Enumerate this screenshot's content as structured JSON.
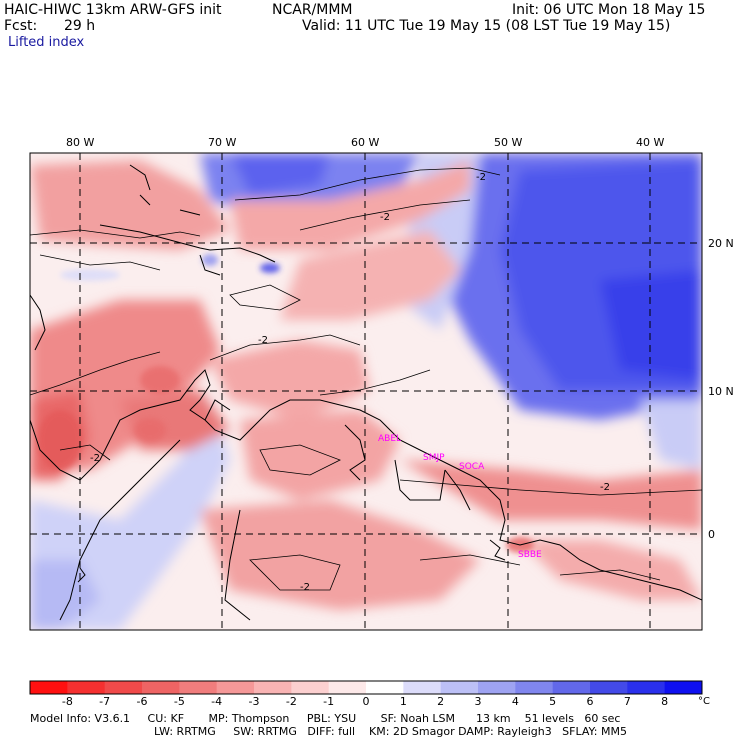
{
  "header": {
    "model": "HAIC-HIWC 13km ARW-GFS init",
    "org": "NCAR/MMM",
    "init": "Init: 06 UTC Mon 18 May 15",
    "fcst_label": "Fcst:",
    "fcst_hours": "29 h",
    "valid": "Valid: 11 UTC Tue 19 May 15 (08 LST Tue 19 May 15)",
    "field": "Lifted index"
  },
  "map": {
    "lon_labels": [
      "80 W",
      "70 W",
      "60 W",
      "50 W",
      "40 W"
    ],
    "lat_labels": [
      "20 N",
      "10 N",
      "0"
    ],
    "contour_labels": [
      "-2",
      "-2",
      "-2",
      "-2",
      "-2",
      "-2"
    ],
    "stations": [
      "ABEL",
      "SMJP",
      "SOCA",
      "SBBE"
    ],
    "station_color": "#ff00ff",
    "colors": {
      "ocean_stable": "#5a62f0",
      "neutral": "#fbecec",
      "unstable": "#f08a8a"
    }
  },
  "colorbar": {
    "levels": [
      "-8",
      "-7",
      "-6",
      "-5",
      "-4",
      "-3",
      "-2",
      "-1",
      "0",
      "1",
      "2",
      "3",
      "4",
      "5",
      "6",
      "7",
      "8"
    ],
    "unit": "°C",
    "colors": [
      "#ff1010",
      "#f53030",
      "#f04a4a",
      "#ee6464",
      "#f07d7d",
      "#f59898",
      "#f9b4b4",
      "#fcd0d0",
      "#fde9e9",
      "#ffffff",
      "#dcdcfa",
      "#bcc0f6",
      "#9ea3f2",
      "#8086ee",
      "#6268ea",
      "#434ae8",
      "#2a30ec",
      "#0e10f0"
    ]
  },
  "footer": {
    "line1": "Model Info: V3.6.1     CU: KF       MP: Thompson     PBL: YSU       SF: Noah LSM      13 km    51 levels   60 sec",
    "line2": "LW: RRTMG     SW: RRTMG   DIFF: full    KM: 2D Smagor DAMP: Rayleigh3   SFLAY: MM5"
  }
}
